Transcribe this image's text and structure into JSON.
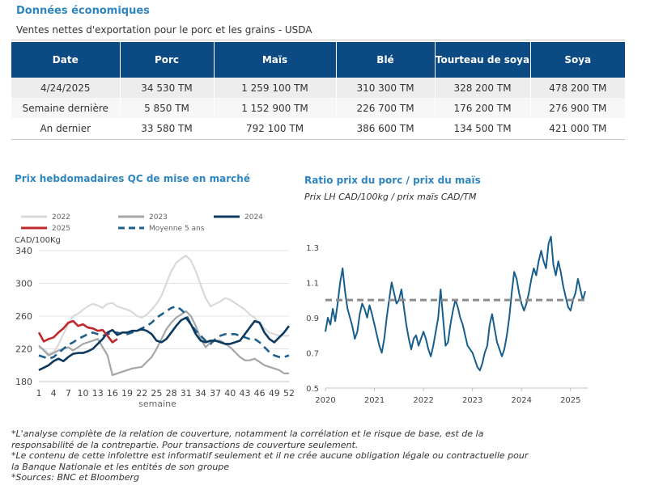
{
  "header": {
    "title": "Données économiques",
    "subtitle": "Ventes nettes d'exportation pour le porc et les grains - USDA"
  },
  "table": {
    "columns": [
      "Date",
      "Porc",
      "Maïs",
      "Blé",
      "Tourteau de soya",
      "Soya"
    ],
    "rows": [
      [
        "4/24/2025",
        "34 530 TM",
        "1 259 100 TM",
        "310 300 TM",
        "328 200 TM",
        "478 200 TM"
      ],
      [
        "Semaine dernière",
        "5 850 TM",
        "1 152 900 TM",
        "226 700 TM",
        "176 200 TM",
        "276 900 TM"
      ],
      [
        "An dernier",
        "33 580 TM",
        "792 100 TM",
        "386 600 TM",
        "134 500 TM",
        "421 000 TM"
      ]
    ]
  },
  "chart_data": [
    {
      "type": "line",
      "title": "Prix hebdomadaires QC de mise en marché",
      "ylabel": "CAD/100Kg",
      "xlabel": "semaine",
      "xlim": [
        1,
        52
      ],
      "ylim": [
        180,
        340
      ],
      "yticks": [
        "340",
        "300",
        "260",
        "220",
        "180"
      ],
      "yticks_values": [
        340,
        300,
        260,
        220,
        180
      ],
      "xticks": [
        "1",
        "4",
        "7",
        "10",
        "13",
        "16",
        "19",
        "22",
        "25",
        "28",
        "31",
        "34",
        "37",
        "40",
        "43",
        "46",
        "49",
        "52"
      ],
      "grid": true,
      "legend_position": "top",
      "series": [
        {
          "name": "2022",
          "color": "#d9d9d9",
          "dash": false,
          "x": [
            1,
            2,
            3,
            4,
            5,
            6,
            7,
            8,
            9,
            10,
            11,
            12,
            13,
            14,
            15,
            16,
            17,
            18,
            19,
            20,
            21,
            22,
            23,
            24,
            25,
            26,
            27,
            28,
            29,
            30,
            31,
            32,
            33,
            34,
            35,
            36,
            37,
            38,
            39,
            40,
            41,
            42,
            43,
            44,
            45,
            46,
            47,
            48,
            49,
            50,
            51,
            52
          ],
          "y": [
            222,
            220,
            214,
            216,
            225,
            238,
            250,
            260,
            263,
            268,
            272,
            275,
            273,
            270,
            275,
            276,
            272,
            270,
            268,
            265,
            260,
            258,
            262,
            268,
            275,
            285,
            300,
            315,
            325,
            330,
            334,
            328,
            315,
            298,
            282,
            272,
            275,
            278,
            282,
            280,
            276,
            272,
            268,
            262,
            258,
            252,
            245,
            240,
            238,
            236,
            236,
            236
          ]
        },
        {
          "name": "2023",
          "color": "#a6a6a6",
          "dash": false,
          "x": [
            1,
            2,
            3,
            4,
            5,
            6,
            7,
            8,
            9,
            10,
            11,
            12,
            13,
            14,
            15,
            16,
            17,
            18,
            19,
            20,
            21,
            22,
            23,
            24,
            25,
            26,
            27,
            28,
            29,
            30,
            31,
            32,
            33,
            34,
            35,
            36,
            37,
            38,
            39,
            40,
            41,
            42,
            43,
            44,
            45,
            46,
            47,
            48,
            49,
            50,
            51,
            52
          ],
          "y": [
            224,
            218,
            212,
            215,
            218,
            220,
            222,
            218,
            222,
            226,
            228,
            230,
            232,
            222,
            212,
            188,
            190,
            192,
            194,
            196,
            197,
            198,
            204,
            210,
            220,
            232,
            244,
            252,
            258,
            262,
            266,
            260,
            248,
            232,
            222,
            228,
            230,
            230,
            226,
            222,
            216,
            210,
            206,
            206,
            208,
            204,
            200,
            198,
            196,
            194,
            190,
            190
          ]
        },
        {
          "name": "2024",
          "color": "#0e3a5f",
          "dash": false,
          "x": [
            1,
            2,
            3,
            4,
            5,
            6,
            7,
            8,
            9,
            10,
            11,
            12,
            13,
            14,
            15,
            16,
            17,
            18,
            19,
            20,
            21,
            22,
            23,
            24,
            25,
            26,
            27,
            28,
            29,
            30,
            31,
            32,
            33,
            34,
            35,
            36,
            37,
            38,
            39,
            40,
            41,
            42,
            43,
            44,
            45,
            46,
            47,
            48,
            49,
            50,
            51,
            52
          ],
          "y": [
            194,
            197,
            200,
            205,
            208,
            205,
            210,
            214,
            215,
            215,
            217,
            220,
            226,
            232,
            240,
            243,
            237,
            240,
            240,
            242,
            242,
            244,
            242,
            238,
            230,
            228,
            232,
            240,
            248,
            255,
            258,
            250,
            238,
            230,
            228,
            230,
            230,
            228,
            226,
            226,
            228,
            230,
            238,
            246,
            254,
            252,
            240,
            232,
            228,
            234,
            240,
            248
          ]
        },
        {
          "name": "2025",
          "color": "#c0282d",
          "dash": false,
          "x": [
            1,
            2,
            3,
            4,
            5,
            6,
            7,
            8,
            9,
            10,
            11,
            12,
            13,
            14,
            15,
            16,
            17
          ],
          "y": [
            240,
            229,
            232,
            234,
            240,
            245,
            252,
            254,
            248,
            250,
            246,
            245,
            242,
            243,
            236,
            228,
            232
          ]
        },
        {
          "name": "Moyenne 5 ans",
          "color": "#1f5f8b",
          "dash": true,
          "x": [
            1,
            2,
            3,
            4,
            5,
            6,
            7,
            8,
            9,
            10,
            11,
            12,
            13,
            14,
            15,
            16,
            17,
            18,
            19,
            20,
            21,
            22,
            23,
            24,
            25,
            26,
            27,
            28,
            29,
            30,
            31,
            32,
            33,
            34,
            35,
            36,
            37,
            38,
            39,
            40,
            41,
            42,
            43,
            44,
            45,
            46,
            47,
            48,
            49,
            50,
            51,
            52
          ],
          "y": [
            212,
            210,
            208,
            210,
            215,
            220,
            225,
            228,
            232,
            235,
            238,
            240,
            238,
            236,
            238,
            240,
            240,
            238,
            238,
            240,
            242,
            245,
            248,
            252,
            258,
            262,
            266,
            270,
            272,
            268,
            262,
            250,
            242,
            236,
            230,
            226,
            232,
            236,
            238,
            238,
            238,
            236,
            234,
            232,
            232,
            228,
            222,
            216,
            212,
            210,
            210,
            212
          ]
        }
      ]
    },
    {
      "type": "line",
      "title": "Ratio prix du porc / prix du maïs",
      "subtitle": "Prix LH CAD/100kg / prix maïs CAD/TM",
      "xlim": [
        2020.0,
        2025.35
      ],
      "ylim": [
        0.5,
        1.4
      ],
      "yticks": [
        "1.3",
        "1.1",
        "0.9",
        "0.7",
        "0.5"
      ],
      "yticks_values": [
        1.3,
        1.1,
        0.9,
        0.7,
        0.5
      ],
      "xticks": [
        "2020",
        "2021",
        "2022",
        "2023",
        "2024",
        "2025"
      ],
      "xticks_values": [
        2020,
        2021,
        2022,
        2023,
        2024,
        2025
      ],
      "grid": false,
      "reference_line": {
        "y": 1.0,
        "color": "#8c8c8c",
        "dash": true
      },
      "series": [
        {
          "name": "",
          "color": "#175e8c",
          "dash": false,
          "x": [
            2020.0,
            2020.05,
            2020.1,
            2020.15,
            2020.2,
            2020.25,
            2020.3,
            2020.35,
            2020.4,
            2020.45,
            2020.5,
            2020.55,
            2020.6,
            2020.65,
            2020.7,
            2020.75,
            2020.8,
            2020.85,
            2020.9,
            2020.95,
            2021.0,
            2021.05,
            2021.1,
            2021.15,
            2021.2,
            2021.25,
            2021.3,
            2021.35,
            2021.4,
            2021.45,
            2021.5,
            2021.55,
            2021.6,
            2021.65,
            2021.7,
            2021.75,
            2021.8,
            2021.85,
            2021.9,
            2021.95,
            2022.0,
            2022.05,
            2022.1,
            2022.15,
            2022.2,
            2022.25,
            2022.3,
            2022.35,
            2022.4,
            2022.45,
            2022.5,
            2022.55,
            2022.6,
            2022.65,
            2022.7,
            2022.75,
            2022.8,
            2022.85,
            2022.9,
            2022.95,
            2023.0,
            2023.05,
            2023.1,
            2023.15,
            2023.2,
            2023.25,
            2023.3,
            2023.35,
            2023.4,
            2023.45,
            2023.5,
            2023.55,
            2023.6,
            2023.65,
            2023.7,
            2023.75,
            2023.8,
            2023.85,
            2023.9,
            2023.95,
            2024.0,
            2024.05,
            2024.1,
            2024.15,
            2024.2,
            2024.25,
            2024.3,
            2024.35,
            2024.4,
            2024.45,
            2024.5,
            2024.55,
            2024.6,
            2024.65,
            2024.7,
            2024.75,
            2024.8,
            2024.85,
            2024.9,
            2024.95,
            2025.0,
            2025.05,
            2025.1,
            2025.15,
            2025.2,
            2025.25,
            2025.3
          ],
          "y": [
            0.82,
            0.9,
            0.86,
            0.95,
            0.88,
            0.98,
            1.1,
            1.18,
            1.05,
            0.95,
            0.9,
            0.85,
            0.78,
            0.82,
            0.92,
            0.98,
            0.95,
            0.9,
            0.97,
            0.92,
            0.86,
            0.8,
            0.74,
            0.7,
            0.78,
            0.9,
            1.0,
            1.1,
            1.04,
            0.98,
            1.0,
            1.06,
            0.96,
            0.86,
            0.78,
            0.72,
            0.78,
            0.8,
            0.74,
            0.78,
            0.82,
            0.78,
            0.72,
            0.68,
            0.74,
            0.82,
            0.9,
            1.06,
            0.9,
            0.74,
            0.76,
            0.86,
            0.94,
            1.0,
            0.96,
            0.9,
            0.86,
            0.8,
            0.74,
            0.72,
            0.7,
            0.66,
            0.62,
            0.6,
            0.64,
            0.7,
            0.74,
            0.86,
            0.92,
            0.84,
            0.76,
            0.72,
            0.68,
            0.72,
            0.8,
            0.9,
            1.04,
            1.16,
            1.12,
            1.04,
            0.98,
            0.94,
            0.98,
            1.04,
            1.12,
            1.18,
            1.14,
            1.22,
            1.28,
            1.22,
            1.18,
            1.32,
            1.36,
            1.2,
            1.14,
            1.22,
            1.16,
            1.08,
            1.02,
            0.96,
            0.94,
            1.0,
            1.04,
            1.12,
            1.06,
            1.0,
            1.05
          ]
        }
      ]
    }
  ],
  "notes": [
    "*L'analyse complète de la relation de couverture, notamment la corrélation et le risque de base, est de la responsabilité de la contrepartie. Pour transactions de couverture seulement.",
    "*Le contenu de cette infolettre est informatif seulement et il ne crée aucune obligation légale ou contractuelle pour la Banque Nationale et les entités de son groupe",
    "*Sources: BNC et Bloomberg"
  ]
}
